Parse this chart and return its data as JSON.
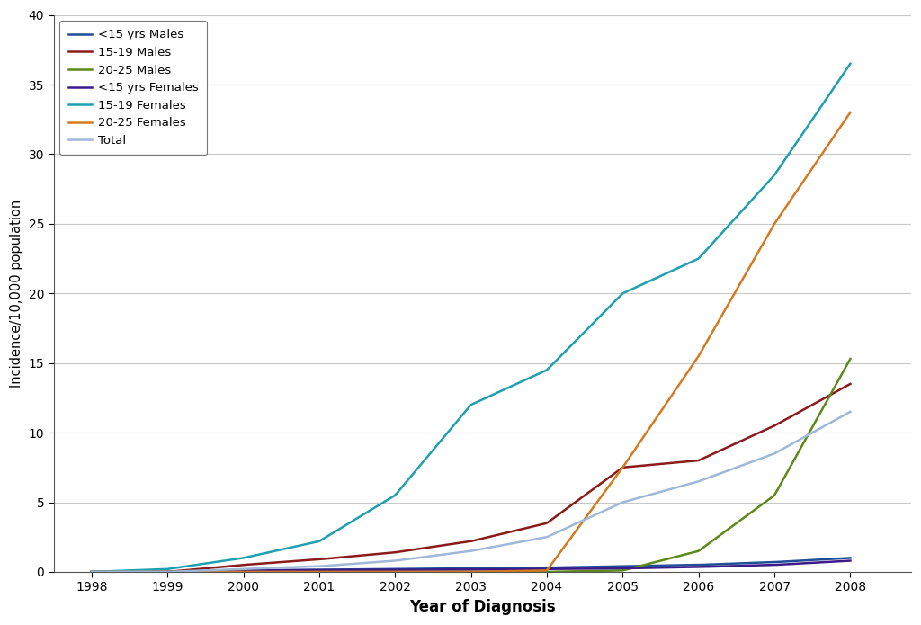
{
  "years": [
    1998,
    1999,
    2000,
    2001,
    2002,
    2003,
    2004,
    2005,
    2006,
    2007,
    2008
  ],
  "series": {
    "<15 yrs Males": {
      "color": "#1f4e97",
      "values": [
        0.0,
        0.0,
        0.1,
        0.15,
        0.2,
        0.25,
        0.3,
        0.4,
        0.5,
        0.7,
        1.0
      ]
    },
    "15-19 Males": {
      "color": "#8b1a1a",
      "values": [
        0.0,
        0.0,
        0.5,
        0.9,
        1.4,
        2.2,
        3.5,
        7.5,
        8.0,
        10.5,
        13.5
      ]
    },
    "20-25 Males": {
      "color": "#5c8a1a",
      "values": [
        0.0,
        0.0,
        0.0,
        0.0,
        0.0,
        0.0,
        0.0,
        0.1,
        1.5,
        5.5,
        15.3
      ]
    },
    "<15 yrs Females": {
      "color": "#3d1a8a",
      "values": [
        0.0,
        0.0,
        0.1,
        0.12,
        0.14,
        0.16,
        0.2,
        0.25,
        0.35,
        0.5,
        0.8
      ]
    },
    "15-19 Females": {
      "color": "#1fa0b0",
      "values": [
        0.0,
        0.2,
        1.0,
        2.2,
        5.5,
        12.0,
        14.5,
        20.0,
        22.5,
        28.5,
        36.5
      ]
    },
    "20-25 Females": {
      "color": "#d47a20",
      "values": [
        0.0,
        0.0,
        0.0,
        0.0,
        0.0,
        0.0,
        0.1,
        7.5,
        15.5,
        25.0,
        33.0
      ]
    },
    "Total": {
      "color": "#a0b8d8",
      "values": [
        0.0,
        0.0,
        0.2,
        0.4,
        0.8,
        1.5,
        2.5,
        5.0,
        6.5,
        8.5,
        11.5
      ]
    }
  },
  "xlabel": "Year of Diagnosis",
  "ylabel": "Incidence/10,000 population",
  "ylim": [
    0,
    40
  ],
  "xlim": [
    1997.5,
    2008.8
  ],
  "yticks": [
    0,
    5,
    10,
    15,
    20,
    25,
    30,
    35,
    40
  ],
  "xticks": [
    1998,
    1999,
    2000,
    2001,
    2002,
    2003,
    2004,
    2005,
    2006,
    2007,
    2008
  ],
  "background_color": "#ffffff",
  "grid_color": "#c8c8c8",
  "legend_order": [
    "<15 yrs Males",
    "15-19 Males",
    "20-25 Males",
    "<15 yrs Females",
    "15-19 Females",
    "20-25 Females",
    "Total"
  ]
}
